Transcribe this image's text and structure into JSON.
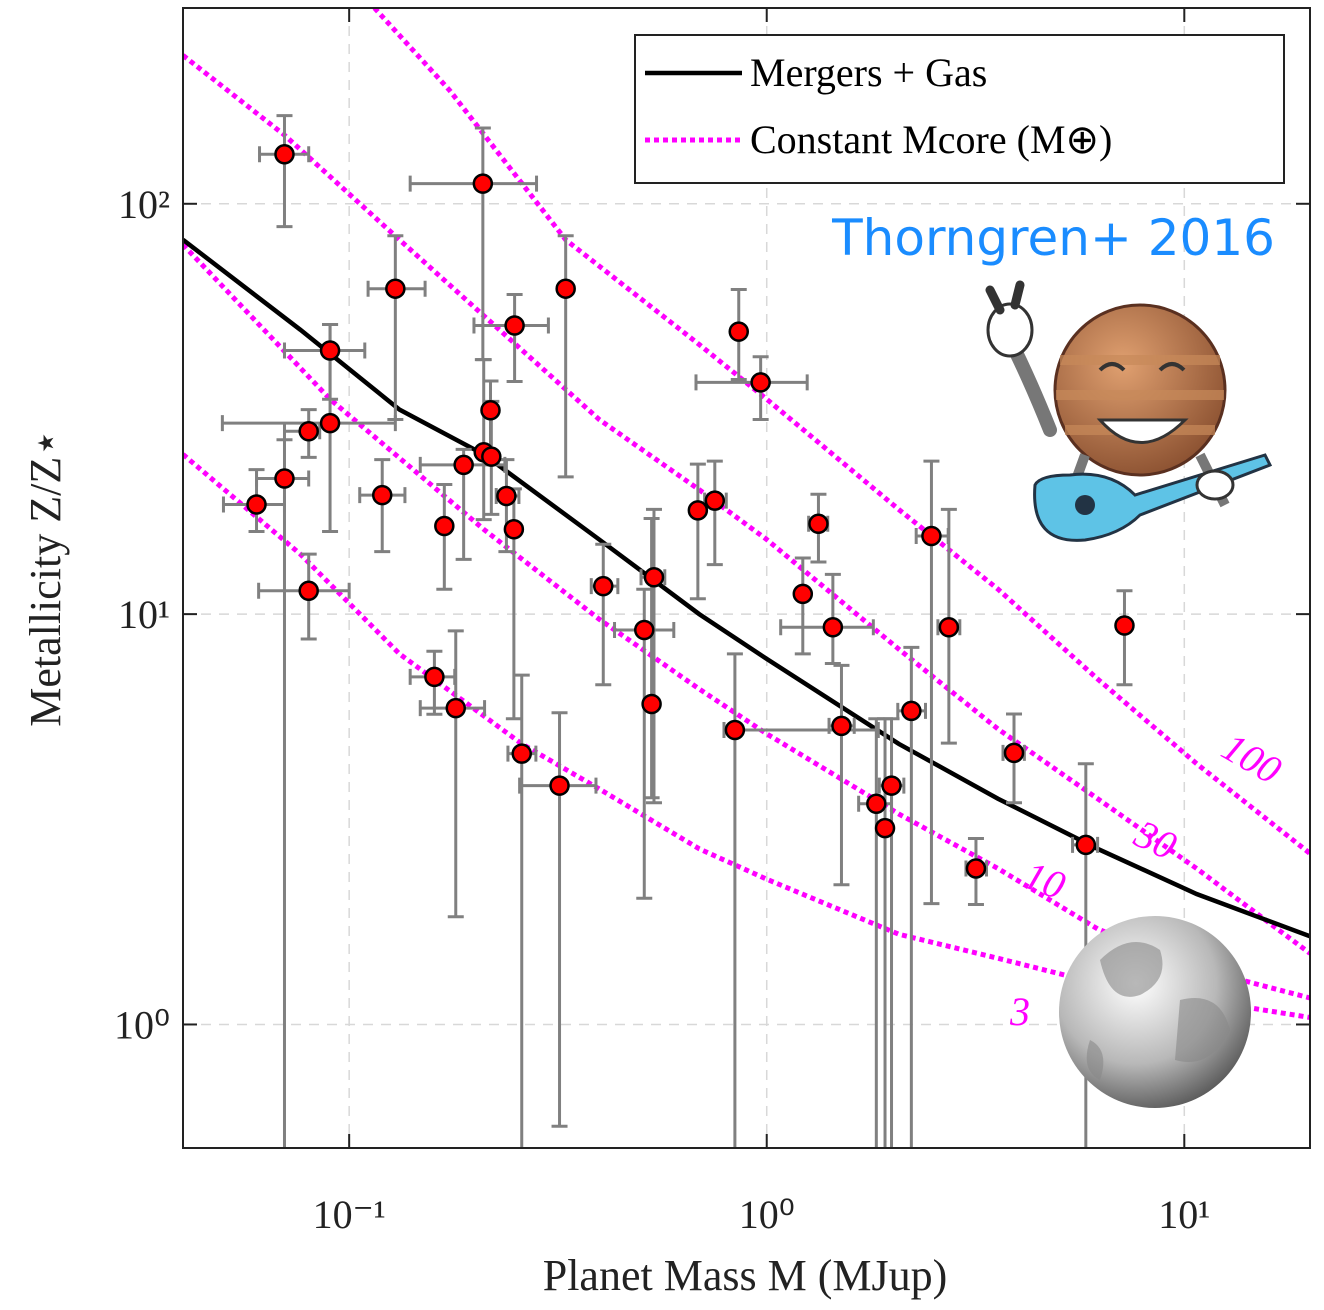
{
  "chart_data": {
    "type": "scatter",
    "xlabel": "Planet Mass M (MJup)",
    "ylabel": "Metallicity Z/Z⋆",
    "annotation": "Thorngren+ 2016",
    "log_x": true,
    "log_y": true,
    "grid": true,
    "xlim": [
      0.04,
      20
    ],
    "ylim": [
      0.5,
      300
    ],
    "xticks": [
      {
        "value": 0.1,
        "label": "10⁻¹"
      },
      {
        "value": 1,
        "label": "10⁰"
      },
      {
        "value": 10,
        "label": "10¹"
      }
    ],
    "yticks": [
      {
        "value": 1,
        "label": "10⁰"
      },
      {
        "value": 10,
        "label": "10¹"
      },
      {
        "value": 100,
        "label": "10²"
      }
    ],
    "lines": [
      {
        "name": "Mergers + Gas",
        "color": "#000000",
        "x": [
          0.04,
          0.0764,
          0.132,
          0.21,
          0.397,
          0.689,
          1,
          2.07,
          3.58,
          6.2,
          10.7,
          20
        ],
        "values": [
          81.7,
          49.3,
          31.5,
          24.5,
          15.2,
          10.0,
          7.78,
          4.83,
          3.55,
          2.68,
          2.08,
          1.64
        ]
      }
    ],
    "core_curves": {
      "name": "Constant Mcore (M⊕)",
      "color": "#ff00ff",
      "curves": [
        {
          "label": "100",
          "x": [
            0.115,
            0.174,
            0.33,
            0.689,
            1,
            2.07,
            3.58,
            6.2,
            10.7,
            20
          ],
          "values": [
            300,
            189,
            81.7,
            45.4,
            33.4,
            18.0,
            11.5,
            6.95,
            4.32,
            2.61
          ]
        },
        {
          "label": "30",
          "x": [
            0.04,
            0.07,
            0.132,
            0.229,
            0.397,
            0.689,
            1,
            2.07,
            3.58,
            6.2,
            10.7,
            20
          ],
          "values": [
            230,
            147,
            81.7,
            49.3,
            29.8,
            20.1,
            15.2,
            8.22,
            5.25,
            3.55,
            2.4,
            1.49
          ]
        },
        {
          "label": "10",
          "x": [
            0.04,
            0.09,
            0.21,
            0.397,
            0.689,
            1,
            2.07,
            3.58,
            6.2,
            10.7,
            20
          ],
          "values": [
            79.5,
            33.4,
            16.1,
            9.72,
            6.57,
            5.11,
            3.26,
            2.4,
            1.71,
            1.37,
            1.16
          ]
        },
        {
          "label": "3",
          "x": [
            0.04,
            0.0764,
            0.132,
            0.259,
            0.397,
            0.689,
            1,
            2.07,
            3.58,
            6.2,
            20
          ],
          "values": [
            24.5,
            14.0,
            8.0,
            4.83,
            3.75,
            2.68,
            2.26,
            1.66,
            1.45,
            1.26,
            1.04
          ]
        }
      ]
    },
    "points": {
      "color": "#ff0000",
      "errorbar_color": "#808080",
      "x": [
        0.07,
        0.209,
        0.129,
        0.33,
        0.249,
        0.09,
        0.857,
        0.967,
        0.218,
        0.08,
        0.09,
        0.21,
        0.219,
        0.188,
        0.07,
        0.06,
        0.12,
        0.238,
        0.248,
        0.169,
        0.684,
        0.751,
        1.33,
        2.48,
        0.08,
        0.406,
        0.537,
        1.22,
        0.509,
        1.44,
        2.73,
        7.19,
        0.16,
        0.18,
        0.53,
        0.839,
        1.51,
        2.22,
        3.91,
        0.259,
        0.319,
        1.99,
        1.83,
        1.92,
        3.17,
        5.81
      ],
      "values": [
        132,
        112,
        62.1,
        62.1,
        50.5,
        43.9,
        48.8,
        36.7,
        31.4,
        27.9,
        29.2,
        24.8,
        24.2,
        23.1,
        21.4,
        18.5,
        19.5,
        19.4,
        16.1,
        16.4,
        17.9,
        18.9,
        16.6,
        15.5,
        11.4,
        11.7,
        12.3,
        11.2,
        9.15,
        9.29,
        9.29,
        9.38,
        7.03,
        5.9,
        6.04,
        5.22,
        5.34,
        5.81,
        4.59,
        4.57,
        3.82,
        3.82,
        3.45,
        3.01,
        2.4,
        2.74
      ],
      "x_low": [
        0.061,
        0.14,
        0.111,
        null,
        0.199,
        0.07,
        null,
        0.677,
        null,
        0.07,
        0.0497,
        null,
        null,
        0.148,
        0.06,
        0.05,
        0.106,
        0.225,
        null,
        null,
        null,
        0.71,
        1.26,
        2.28,
        0.0607,
        0.38,
        0.5,
        null,
        0.432,
        1.08,
        2.57,
        null,
        0.14,
        0.148,
        null,
        0.79,
        1.41,
        2.06,
        3.68,
        0.24,
        0.256,
        1.86,
        1.66,
        null,
        3.0,
        5.4
      ],
      "x_high": [
        0.08,
        0.281,
        0.152,
        null,
        0.3,
        0.109,
        null,
        1.25,
        null,
        0.085,
        0.129,
        null,
        null,
        0.236,
        0.08,
        0.07,
        0.136,
        0.255,
        null,
        null,
        null,
        0.8,
        1.4,
        2.72,
        0.1,
        0.44,
        0.57,
        null,
        0.599,
        1.8,
        2.9,
        null,
        0.179,
        0.211,
        null,
        1.85,
        1.62,
        2.4,
        4.14,
        0.28,
        0.39,
        2.13,
        1.99,
        null,
        3.36,
        6.2
      ],
      "y_low": [
        88,
        41.7,
        29.8,
        21.6,
        36.9,
        33.4,
        37.3,
        29.8,
        25,
        24.1,
        15.9,
        17.0,
        17.5,
        13.6,
        0.3,
        15.9,
        14.2,
        14.2,
        5.56,
        11.5,
        10.9,
        13.2,
        13.4,
        1.97,
        8.7,
        6.73,
        3.47,
        8.0,
        2.03,
        7.58,
        4.85,
        6.73,
        5.7,
        1.83,
        3.57,
        0.3,
        2.19,
        0.3,
        3.47,
        0.3,
        0.565,
        0.3,
        0.3,
        0.3,
        1.96,
        0.3
      ],
      "y_high": [
        164,
        153,
        83.6,
        83.6,
        60.1,
        50.8,
        61.8,
        42.4,
        37,
        31.5,
        50.8,
        41.7,
        33,
        25.2,
        26.6,
        22.5,
        23.8,
        23.8,
        20.2,
        20.7,
        23.2,
        23.6,
        19.6,
        23.6,
        14.0,
        14.8,
        18.0,
        13.7,
        11.5,
        12.5,
        18.0,
        11.4,
        8.12,
        9.1,
        17.1,
        8.0,
        7.5,
        8.3,
        5.71,
        7.1,
        5.75,
        5.56,
        5.56,
        5.56,
        2.84,
        4.32
      ]
    }
  }
}
